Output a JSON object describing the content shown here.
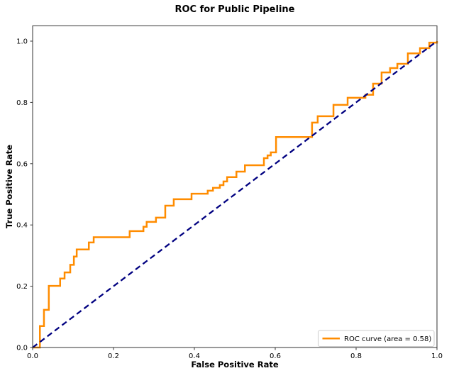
{
  "chart_data": {
    "type": "line",
    "subtype": "roc_step_curve",
    "title": "ROC for Public Pipeline",
    "xlabel": "False Positive Rate",
    "ylabel": "True Positive Rate",
    "xlim": [
      0.0,
      1.0
    ],
    "ylim": [
      0.0,
      1.05
    ],
    "grid": false,
    "xticks": [
      "0.0",
      "0.2",
      "0.4",
      "0.6",
      "0.8",
      "1.0"
    ],
    "yticks": [
      "0.0",
      "0.2",
      "0.4",
      "0.6",
      "0.8",
      "1.0"
    ],
    "series": [
      {
        "name": "ROC curve",
        "auc": 0.58,
        "style": "step-solid",
        "color": "#ff8c00",
        "linewidth": 2.5,
        "start": [
          0.0,
          0.0
        ],
        "steps": [
          [
            0.018,
            0.07
          ],
          [
            0.028,
            0.123
          ],
          [
            0.04,
            0.201
          ],
          [
            0.068,
            0.225
          ],
          [
            0.079,
            0.245
          ],
          [
            0.093,
            0.27
          ],
          [
            0.102,
            0.297
          ],
          [
            0.109,
            0.32
          ],
          [
            0.139,
            0.343
          ],
          [
            0.151,
            0.36
          ],
          [
            0.24,
            0.38
          ],
          [
            0.274,
            0.394
          ],
          [
            0.282,
            0.41
          ],
          [
            0.305,
            0.424
          ],
          [
            0.328,
            0.463
          ],
          [
            0.349,
            0.484
          ],
          [
            0.393,
            0.502
          ],
          [
            0.433,
            0.512
          ],
          [
            0.446,
            0.521
          ],
          [
            0.463,
            0.53
          ],
          [
            0.472,
            0.542
          ],
          [
            0.481,
            0.556
          ],
          [
            0.504,
            0.574
          ],
          [
            0.525,
            0.595
          ],
          [
            0.572,
            0.618
          ],
          [
            0.581,
            0.627
          ],
          [
            0.589,
            0.637
          ],
          [
            0.602,
            0.687
          ],
          [
            0.691,
            0.734
          ],
          [
            0.705,
            0.755
          ],
          [
            0.744,
            0.792
          ],
          [
            0.779,
            0.815
          ],
          [
            0.823,
            0.825
          ],
          [
            0.842,
            0.861
          ],
          [
            0.863,
            0.898
          ],
          [
            0.884,
            0.912
          ],
          [
            0.902,
            0.926
          ],
          [
            0.928,
            0.96
          ],
          [
            0.958,
            0.977
          ],
          [
            0.981,
            0.995
          ],
          [
            1.0,
            1.0
          ]
        ]
      },
      {
        "name": "chance diagonal",
        "style": "dashed",
        "color": "#000080",
        "linewidth": 2.3,
        "points": [
          [
            0.0,
            0.0
          ],
          [
            1.0,
            1.0
          ]
        ]
      }
    ],
    "legend": {
      "position": "lower right",
      "entries": [
        {
          "label": "ROC curve (area = 0.58)",
          "swatch_color": "#ff8c00"
        }
      ]
    }
  },
  "colors": {
    "background": "#ffffff",
    "spine": "#333333",
    "tick": "#333333",
    "tick_label": "#000000",
    "legend_border": "#cccccc",
    "legend_fill": "#ffffff"
  }
}
